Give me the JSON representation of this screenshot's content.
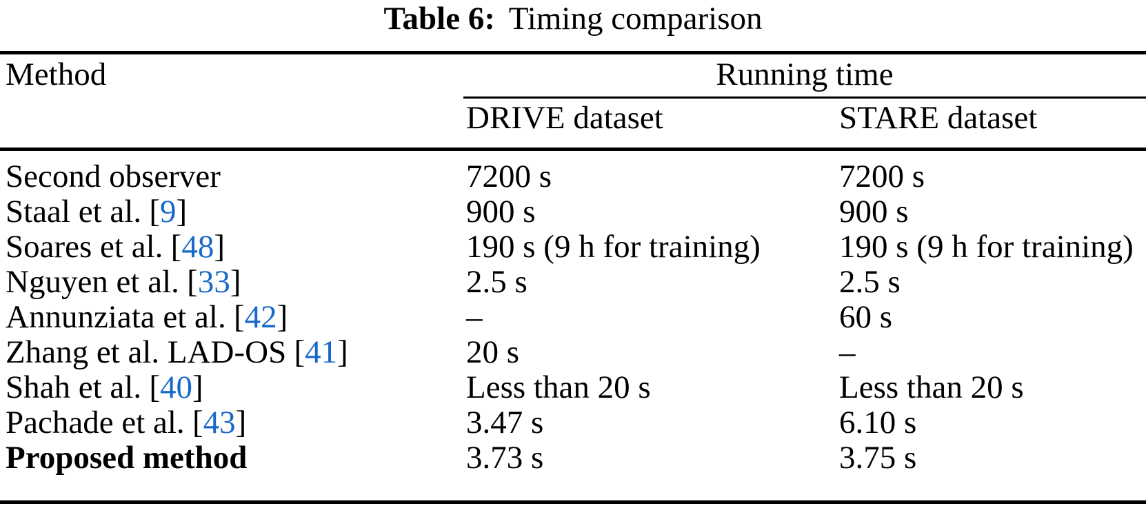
{
  "caption": {
    "label": "Table 6:",
    "text": "Timing comparison"
  },
  "colors": {
    "text": "#000000",
    "citation_blue": "#1769C9",
    "rule": "#000000"
  },
  "table": {
    "header": {
      "method": "Method",
      "running_time": "Running time",
      "col_drive": "DRIVE dataset",
      "col_stare": "STARE dataset"
    },
    "rows": [
      {
        "method": "Second observer",
        "ref": null,
        "drive": "7200 s",
        "stare": "7200 s",
        "bold": false
      },
      {
        "method": "Staal et al.",
        "ref": "9",
        "drive": "900 s",
        "stare": "900 s",
        "bold": false
      },
      {
        "method": "Soares et al.",
        "ref": "48",
        "drive": "190 s (9 h for training)",
        "stare": "190 s (9 h for training)",
        "bold": false
      },
      {
        "method": "Nguyen et al.",
        "ref": "33",
        "drive": "2.5 s",
        "stare": "2.5 s",
        "bold": false
      },
      {
        "method": "Annunziata et al.",
        "ref": "42",
        "drive": "–",
        "stare": "60 s",
        "bold": false
      },
      {
        "method": "Zhang et al. LAD-OS",
        "ref": "41",
        "drive": "20 s",
        "stare": "–",
        "bold": false
      },
      {
        "method": "Shah et al.",
        "ref": "40",
        "drive": "Less than 20 s",
        "stare": "Less than 20 s",
        "bold": false
      },
      {
        "method": "Pachade et al.",
        "ref": "43",
        "drive": "3.47 s",
        "stare": "6.10 s",
        "bold": false
      },
      {
        "method": "Proposed method",
        "ref": null,
        "drive": "3.73 s",
        "stare": "3.75 s",
        "bold": true
      }
    ]
  }
}
